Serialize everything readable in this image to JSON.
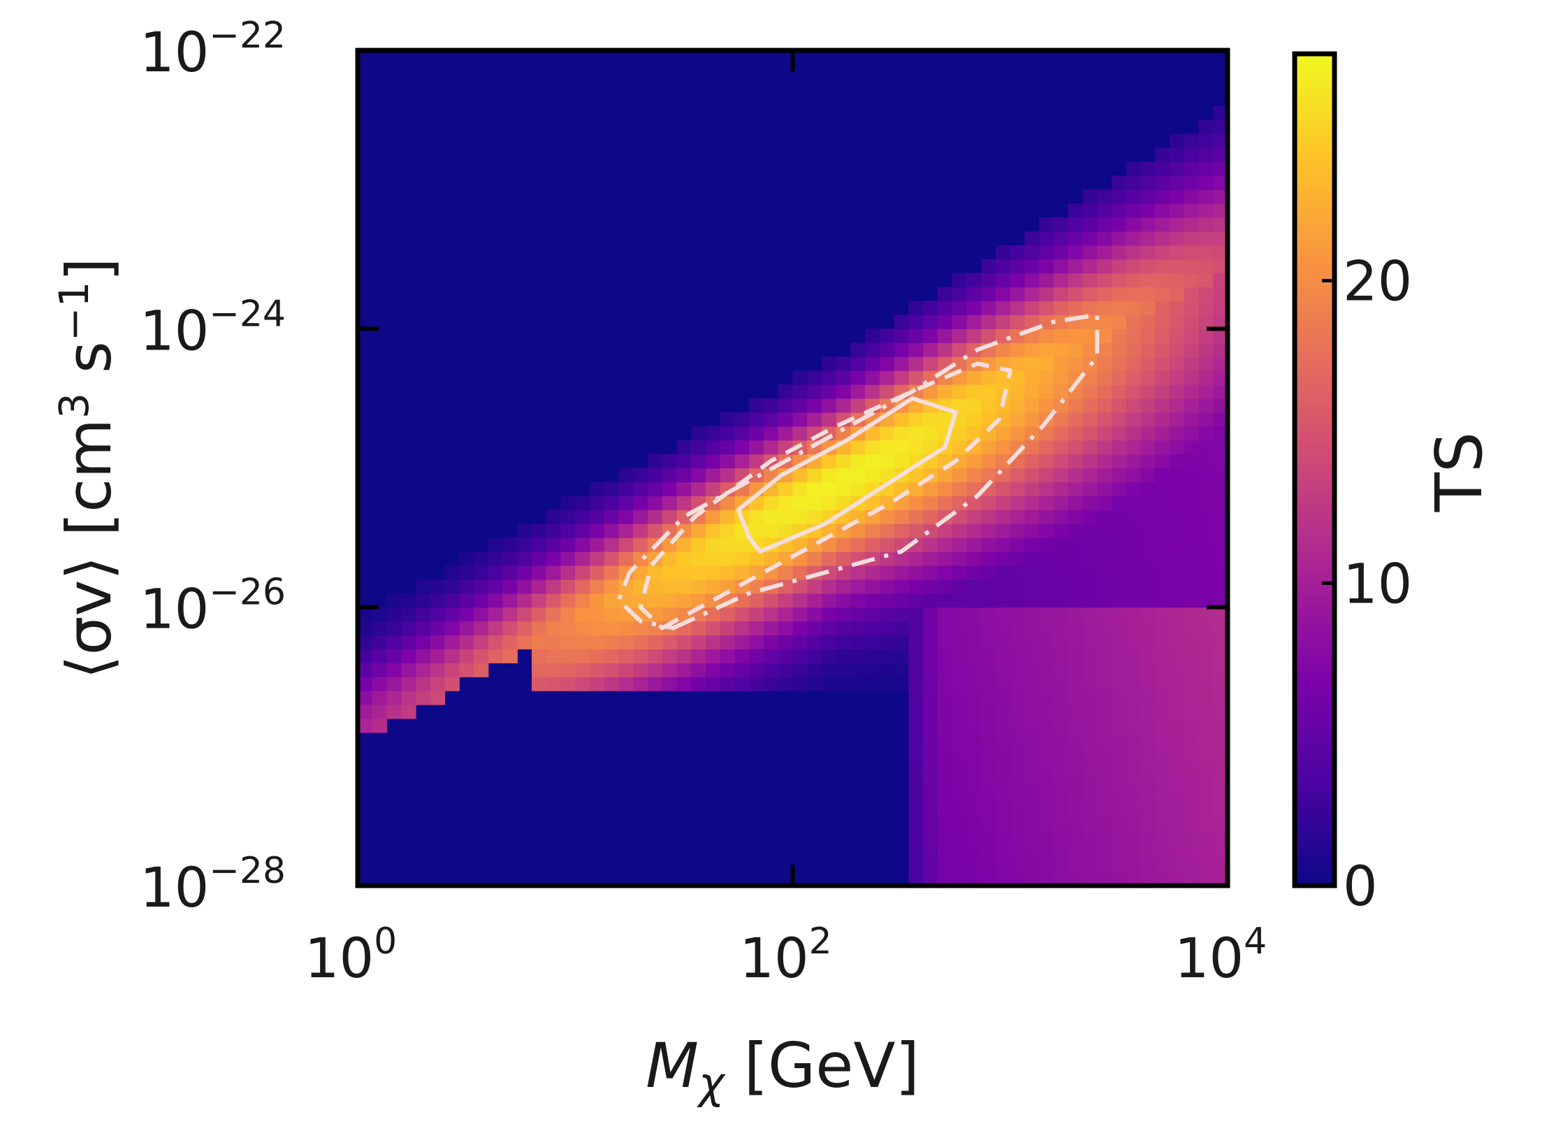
{
  "chart_data": {
    "type": "heatmap",
    "title": "",
    "x": {
      "scale": "log",
      "range": [
        1,
        10000
      ],
      "ticks": [
        {
          "value": 1,
          "base": "10",
          "exp": "0"
        },
        {
          "value": 100,
          "base": "10",
          "exp": "2"
        },
        {
          "value": 10000,
          "base": "10",
          "exp": "4"
        }
      ],
      "label_main": "M",
      "label_sub": "χ",
      "label_unit": " [GeV]"
    },
    "y": {
      "scale": "log",
      "range": [
        1e-28,
        1e-22
      ],
      "ticks": [
        {
          "value": 1e-28,
          "base": "10",
          "exp": "−28"
        },
        {
          "value": 1e-26,
          "base": "10",
          "exp": "−26"
        },
        {
          "value": 1e-24,
          "base": "10",
          "exp": "−24"
        },
        {
          "value": 1e-22,
          "base": "10",
          "exp": "−22"
        }
      ],
      "label_core": "⟨σv⟩ [cm",
      "label_exp1": "3",
      "label_mid": " s",
      "label_exp2": "−1",
      "label_end": "]"
    },
    "colorbar": {
      "label": "TS",
      "colormap": "plasma",
      "range": [
        0,
        27.5
      ],
      "ticks": [
        {
          "value": 0,
          "label": "0"
        },
        {
          "value": 10,
          "label": "10"
        },
        {
          "value": 20,
          "label": "20"
        }
      ]
    },
    "peak": {
      "log10_mass": 2.2,
      "log10_sigmav": -25.1,
      "ts": 27
    },
    "ridge_slope": 0.85,
    "tail_mass_threshold_log10": 2.55,
    "grid_cells": {
      "nx": 60,
      "ny": 60
    },
    "contours": [
      {
        "style": "solid",
        "level": "inner",
        "points": [
          [
            1.85,
            -25.6
          ],
          [
            2.15,
            -25.4
          ],
          [
            2.45,
            -25.1
          ],
          [
            2.7,
            -24.85
          ],
          [
            2.75,
            -24.6
          ],
          [
            2.55,
            -24.5
          ],
          [
            2.25,
            -24.8
          ],
          [
            1.95,
            -25.05
          ],
          [
            1.75,
            -25.3
          ],
          [
            1.8,
            -25.5
          ]
        ]
      },
      {
        "style": "dashed",
        "level": "middle",
        "points": [
          [
            1.4,
            -26.15
          ],
          [
            1.75,
            -25.85
          ],
          [
            2.1,
            -25.55
          ],
          [
            2.45,
            -25.25
          ],
          [
            2.75,
            -24.95
          ],
          [
            2.95,
            -24.65
          ],
          [
            3.0,
            -24.3
          ],
          [
            2.85,
            -24.25
          ],
          [
            2.55,
            -24.45
          ],
          [
            2.2,
            -24.7
          ],
          [
            1.9,
            -24.95
          ],
          [
            1.55,
            -25.35
          ],
          [
            1.35,
            -25.7
          ],
          [
            1.3,
            -26.0
          ]
        ]
      },
      {
        "style": "dashdot",
        "level": "outer",
        "points": [
          [
            1.45,
            -26.15
          ],
          [
            1.8,
            -25.9
          ],
          [
            2.15,
            -25.75
          ],
          [
            2.5,
            -25.6
          ],
          [
            2.85,
            -25.2
          ],
          [
            3.15,
            -24.7
          ],
          [
            3.4,
            -24.2
          ],
          [
            3.4,
            -23.9
          ],
          [
            3.2,
            -23.95
          ],
          [
            2.85,
            -24.15
          ],
          [
            2.55,
            -24.45
          ],
          [
            2.2,
            -24.75
          ],
          [
            1.85,
            -25.05
          ],
          [
            1.5,
            -25.35
          ],
          [
            1.25,
            -25.75
          ],
          [
            1.2,
            -25.95
          ],
          [
            1.3,
            -26.1
          ]
        ]
      }
    ]
  }
}
